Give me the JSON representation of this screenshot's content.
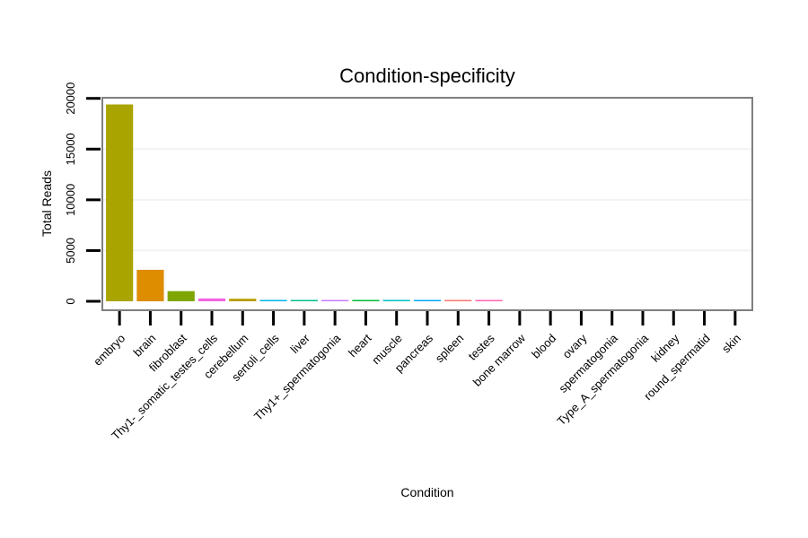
{
  "chart_data": {
    "type": "bar",
    "title": "Condition-specificity",
    "xlabel": "Condition",
    "ylabel": "Total Reads",
    "ylim": [
      0,
      20000
    ],
    "yticks": [
      0,
      5000,
      10000,
      15000,
      20000
    ],
    "grid": true,
    "categories": [
      "embryo",
      "brain",
      "fibroblast",
      "Thy1-_somatic_testes_cells",
      "cerebellum",
      "sertoli_cells",
      "liver",
      "Thy1+_spermatogonia",
      "heart",
      "muscle",
      "pancreas",
      "spleen",
      "testes",
      "bone marrow",
      "blood",
      "ovary",
      "spermatogonia",
      "Type_A_spermatogonia",
      "kidney",
      "round_spermatid",
      "skin"
    ],
    "values": [
      19400,
      3100,
      1000,
      280,
      250,
      120,
      110,
      90,
      80,
      70,
      65,
      60,
      55,
      0,
      0,
      0,
      0,
      0,
      0,
      0,
      0
    ],
    "colors": [
      "#a9a400",
      "#de8c00",
      "#7fa600",
      "#f464e3",
      "#b79f00",
      "#00b6eb",
      "#00c08b",
      "#c77cff",
      "#00ba38",
      "#00bfc4",
      "#00a9ff",
      "#f8766d",
      "#ff64b0",
      "#e58700",
      "#619cff",
      "#00bc56",
      "#8494ff",
      "#b983ff",
      "#e76bf3",
      "#fd61d1",
      "#ff6c90"
    ]
  }
}
